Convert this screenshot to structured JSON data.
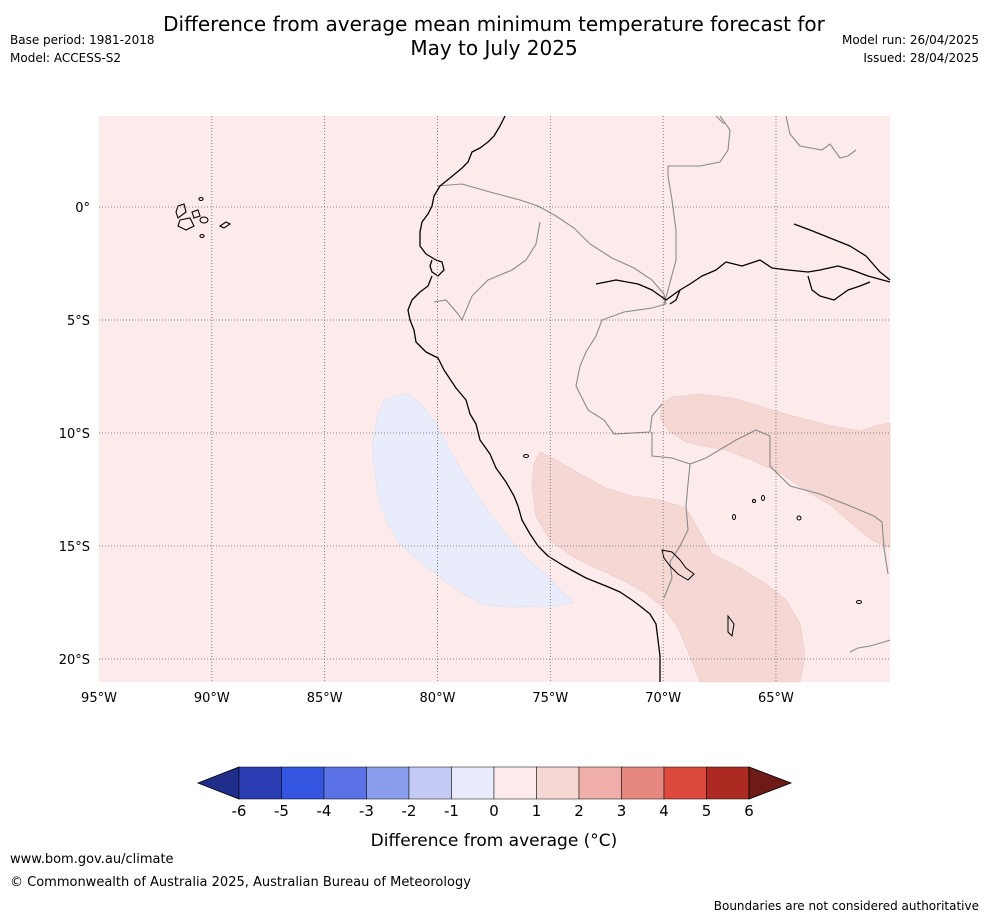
{
  "title_line1": "Difference from average mean minimum temperature forecast for",
  "title_line2": "May to July 2025",
  "base_period": "Base period: 1981-2018",
  "model": "Model: ACCESS-S2",
  "model_run": "Model run: 26/04/2025",
  "issued": "Issued: 28/04/2025",
  "map": {
    "lon_labels": [
      "95°W",
      "90°W",
      "85°W",
      "80°W",
      "75°W",
      "70°W",
      "65°W"
    ],
    "lat_labels": [
      "0°",
      "5°S",
      "10°S",
      "15°S",
      "20°S"
    ],
    "background_anomaly_color": "#fcebea",
    "anomaly_regions": [
      {
        "name": "offshore-cool-patch",
        "category": "-1 to 0",
        "color": "#e8ecfb"
      },
      {
        "name": "andes-warm-patch",
        "category": "1 to 2",
        "color": "#f5d7d4"
      },
      {
        "name": "amazon-warm-patch",
        "category": "1 to 2",
        "color": "#f5d7d4"
      }
    ]
  },
  "colorbar": {
    "ticks": [
      "-6",
      "-5",
      "-4",
      "-3",
      "-2",
      "-1",
      "0",
      "1",
      "2",
      "3",
      "4",
      "5",
      "6"
    ],
    "colors": [
      "#1f2e8a",
      "#2a3db2",
      "#3355e0",
      "#5a72e6",
      "#8a9ded",
      "#c3caf4",
      "#e8ebfb",
      "#fcebea",
      "#f5d7d4",
      "#efaea8",
      "#e68880",
      "#dc4a3e",
      "#ac2a22",
      "#6e1a16"
    ],
    "label": "Difference from average (°C)"
  },
  "footer": {
    "url": "www.bom.gov.au/climate",
    "copyright": "© Commonwealth of Australia 2025, Australian Bureau of Meteorology",
    "note": "Boundaries are not considered authoritative"
  }
}
